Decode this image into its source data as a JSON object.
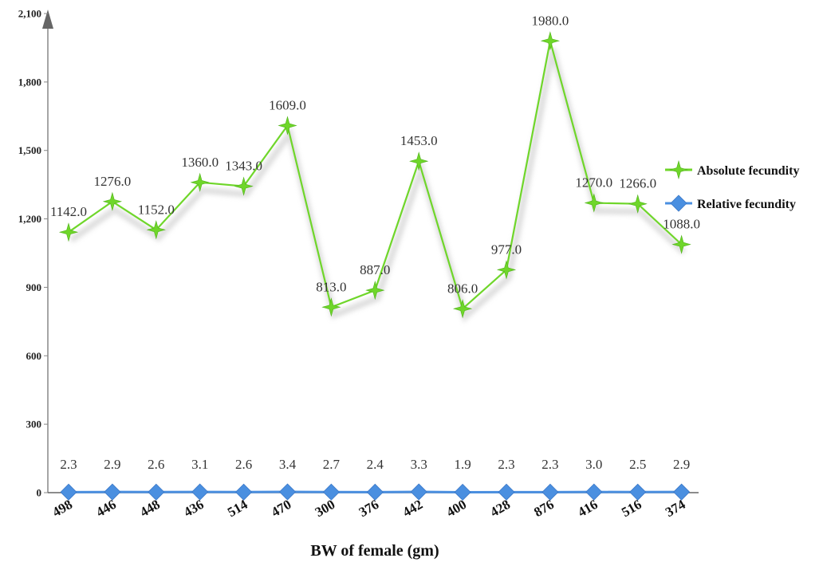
{
  "chart_data": {
    "type": "line",
    "title": "",
    "xlabel": "BW of female  (gm)",
    "ylabel": "",
    "categories": [
      "498",
      "446",
      "448",
      "436",
      "514",
      "470",
      "300",
      "376",
      "442",
      "400",
      "428",
      "876",
      "416",
      "516",
      "374"
    ],
    "ylim": [
      0,
      2100
    ],
    "yticks": [
      0,
      300,
      600,
      900,
      1200,
      1500,
      1800,
      2100
    ],
    "ytick_labels": [
      "0",
      "300",
      "600",
      "900",
      "1,200",
      "1,500",
      "1,800",
      "2,100"
    ],
    "series": [
      {
        "name": "Absolute fecundity",
        "color": "#6fd62a",
        "marker": "star",
        "values": [
          1142.0,
          1276.0,
          1152.0,
          1360.0,
          1343.0,
          1609.0,
          813.0,
          887.0,
          1453.0,
          806.0,
          977.0,
          1980.0,
          1270.0,
          1266.0,
          1088.0
        ],
        "labels": [
          "1142.0",
          "1276.0",
          "1152.0",
          "1360.0",
          "1343.0",
          "1609.0",
          "813.0",
          "887.0",
          "1453.0",
          "806.0",
          "977.0",
          "1980.0",
          "1270.0",
          "1266.0",
          "1088.0"
        ]
      },
      {
        "name": "Relative fecundity",
        "color": "#4a8fe0",
        "marker": "diamond",
        "values": [
          2.3,
          2.9,
          2.6,
          3.1,
          2.6,
          3.4,
          2.7,
          2.4,
          3.3,
          1.9,
          2.3,
          2.3,
          3.0,
          2.5,
          2.9
        ],
        "labels": [
          "2.3",
          "2.9",
          "2.6",
          "3.1",
          "2.6",
          "3.4",
          "2.7",
          "2.4",
          "3.3",
          "1.9",
          "2.3",
          "2.3",
          "3.0",
          "2.5",
          "2.9"
        ]
      }
    ],
    "grid": false,
    "legend_position": "right"
  }
}
